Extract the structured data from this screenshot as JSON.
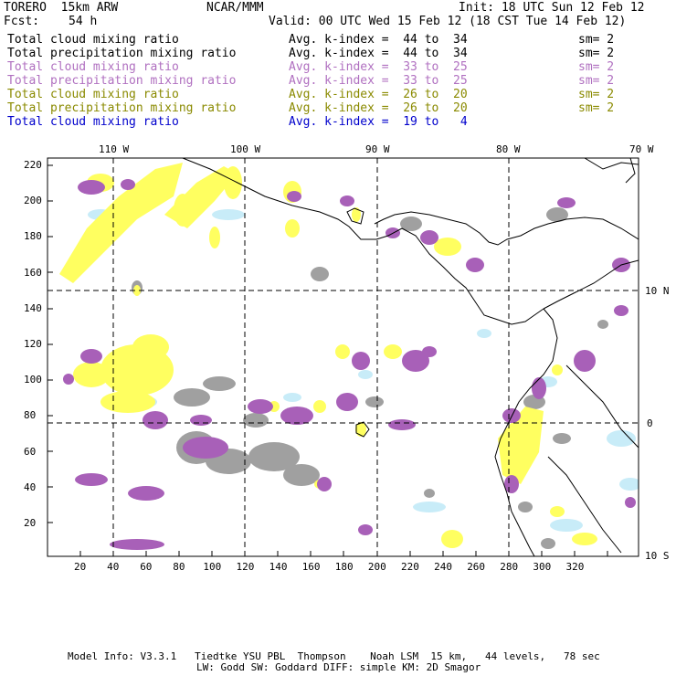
{
  "header": {
    "model": "TORERO  15km ARW",
    "org": "NCAR/MMM",
    "init": "Init: 18 UTC Sun 12 Feb 12",
    "fcst_label": "Fcst:",
    "fcst_value": "54 h",
    "valid": "Valid: 00 UTC Wed 15 Feb 12 (18 CST Tue 14 Feb 12)"
  },
  "legend": [
    {
      "name": "Total cloud mixing ratio",
      "kidx": "Avg. k-index =  44 to  34",
      "sm": "sm= 2",
      "color": "#000000"
    },
    {
      "name": "Total precipitation mixing ratio",
      "kidx": "Avg. k-index =  44 to  34",
      "sm": "sm= 2",
      "color": "#000000"
    },
    {
      "name": "Total cloud mixing ratio",
      "kidx": "Avg. k-index =  33 to  25",
      "sm": "sm= 2",
      "color": "#b070c0"
    },
    {
      "name": "Total precipitation mixing ratio",
      "kidx": "Avg. k-index =  33 to  25",
      "sm": "sm= 2",
      "color": "#b070c0"
    },
    {
      "name": "Total cloud mixing ratio",
      "kidx": "Avg. k-index =  26 to  20",
      "sm": "sm= 2",
      "color": "#8a8a00"
    },
    {
      "name": "Total precipitation mixing ratio",
      "kidx": "Avg. k-index =  26 to  20",
      "sm": "sm= 2",
      "color": "#8a8a00"
    },
    {
      "name": "Total cloud mixing ratio",
      "kidx": "Avg. k-index =  19 to   4",
      "sm": "",
      "color": "#0000cc"
    }
  ],
  "map": {
    "lon_labels": [
      "110 W",
      "100 W",
      "90 W",
      "80 W",
      "70 W"
    ],
    "lat_labels": [
      "10 N",
      "0",
      "10 S"
    ],
    "y_ticks": [
      "220",
      "200",
      "180",
      "160",
      "140",
      "120",
      "100",
      "80",
      "60",
      "40",
      "20"
    ],
    "x_ticks": [
      "20",
      "40",
      "60",
      "80",
      "100",
      "120",
      "140",
      "160",
      "180",
      "200",
      "220",
      "240",
      "260",
      "280",
      "300",
      "320"
    ],
    "colors": {
      "gray": "#a0a0a0",
      "purple": "#a860b8",
      "yellow": "#ffff60",
      "cyan": "#c8ecf8",
      "coast": "#000000"
    }
  },
  "footer": {
    "line1": "Model Info: V3.3.1   Tiedtke YSU PBL  Thompson    Noah LSM  15 km,   44 levels,   78 sec",
    "line2": "LW: Godd SW: Goddard DIFF: simple KM: 2D Smagor"
  }
}
